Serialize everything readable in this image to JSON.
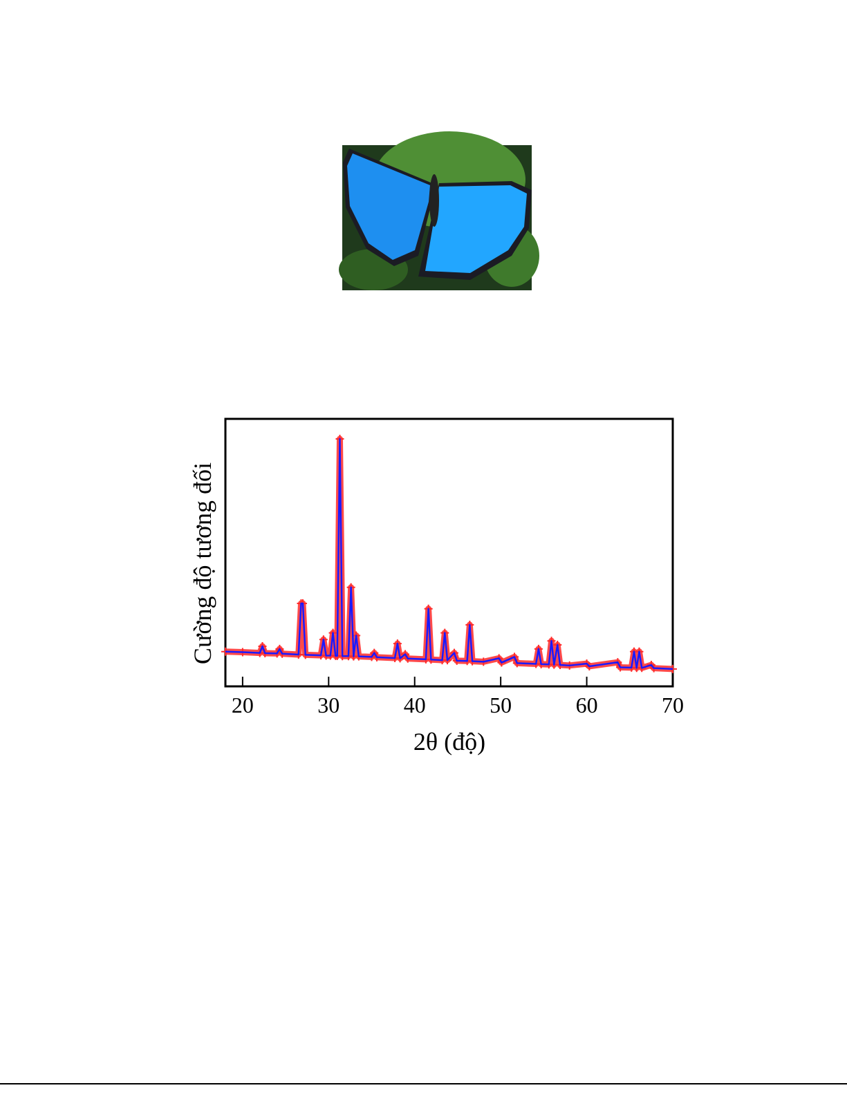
{
  "chart_data": {
    "type": "line",
    "xlabel": "2θ (độ)",
    "ylabel": "Cường độ tương đối",
    "xlim": [
      18,
      70
    ],
    "xticks": [
      20,
      30,
      40,
      50,
      60,
      70
    ],
    "ylim": [
      0,
      100
    ],
    "x": [
      18,
      20,
      22,
      22.3,
      22.6,
      24,
      24.3,
      24.6,
      26.5,
      26.8,
      27.0,
      27.3,
      29.1,
      29.4,
      29.7,
      30.2,
      30.5,
      30.8,
      31.0,
      31.3,
      31.6,
      32.3,
      32.6,
      32.9,
      33.2,
      33.5,
      35.0,
      35.3,
      35.6,
      37.7,
      38.0,
      38.3,
      38.9,
      39.2,
      41.3,
      41.6,
      41.9,
      43.2,
      43.5,
      43.8,
      44.6,
      44.9,
      46.1,
      46.4,
      46.7,
      48.0,
      49.8,
      50.1,
      51.6,
      51.9,
      54.1,
      54.4,
      54.7,
      55.6,
      55.9,
      56.2,
      56.6,
      56.9,
      58.0,
      60.0,
      60.3,
      63.6,
      63.9,
      65.2,
      65.5,
      65.8,
      66.1,
      66.4,
      67.5,
      67.8,
      70.0
    ],
    "series": [
      {
        "color": "#1a1aff",
        "marker_color": "#ff2a2a",
        "values": [
          13.0,
          12.8,
          12.5,
          15,
          12.4,
          12.3,
          14,
          12.2,
          11.9,
          31,
          31,
          11.8,
          11.6,
          17.5,
          11.5,
          11.5,
          20,
          11.4,
          11.4,
          92.5,
          11.3,
          11.3,
          37,
          11.2,
          19,
          11.2,
          11.0,
          12.5,
          10.9,
          10.6,
          16,
          10.5,
          12,
          10.4,
          10.1,
          29,
          10.0,
          9.8,
          20,
          9.8,
          12.5,
          9.6,
          9.5,
          23,
          9.4,
          9.2,
          10.5,
          8.9,
          11,
          8.7,
          8.4,
          14,
          8.3,
          8.2,
          17,
          8.1,
          15.5,
          8.0,
          7.8,
          8.5,
          7.5,
          9,
          7.1,
          7.0,
          13,
          6.9,
          13,
          6.9,
          8,
          6.8,
          6.5
        ]
      }
    ]
  }
}
